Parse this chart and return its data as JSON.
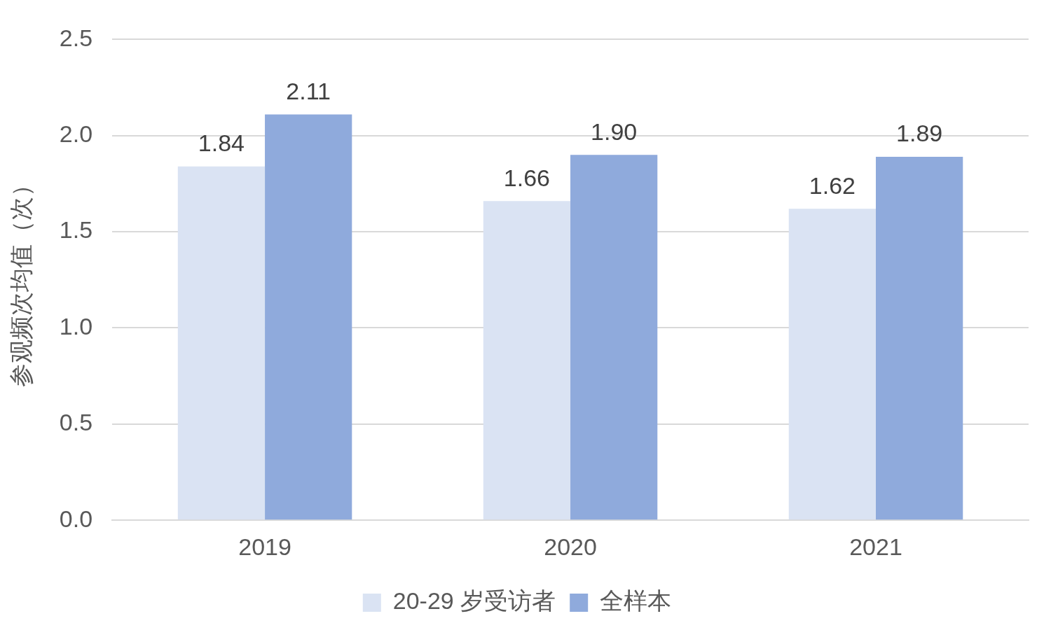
{
  "chart_data": {
    "type": "bar",
    "ylabel": "参观频次均值（次）",
    "categories": [
      "2019",
      "2020",
      "2021"
    ],
    "series": [
      {
        "name": "20-29 岁受访者",
        "color": "#dae3f3",
        "values": [
          1.84,
          1.66,
          1.62
        ],
        "value_labels": [
          "1.84",
          "1.66",
          "1.62"
        ]
      },
      {
        "name": "全样本",
        "color": "#8faadc",
        "values": [
          2.11,
          1.9,
          1.89
        ],
        "value_labels": [
          "2.11",
          "1.90",
          "1.89"
        ]
      }
    ],
    "ylim": [
      0,
      2.5
    ],
    "yticks": [
      {
        "value": 0,
        "label": "0.0"
      },
      {
        "value": 0.5,
        "label": "0.5"
      },
      {
        "value": 1,
        "label": "1.0"
      },
      {
        "value": 1.5,
        "label": "1.5"
      },
      {
        "value": 2,
        "label": "2.0"
      },
      {
        "value": 2.5,
        "label": "2.5"
      }
    ],
    "grid": "y",
    "legend": "bottom"
  }
}
